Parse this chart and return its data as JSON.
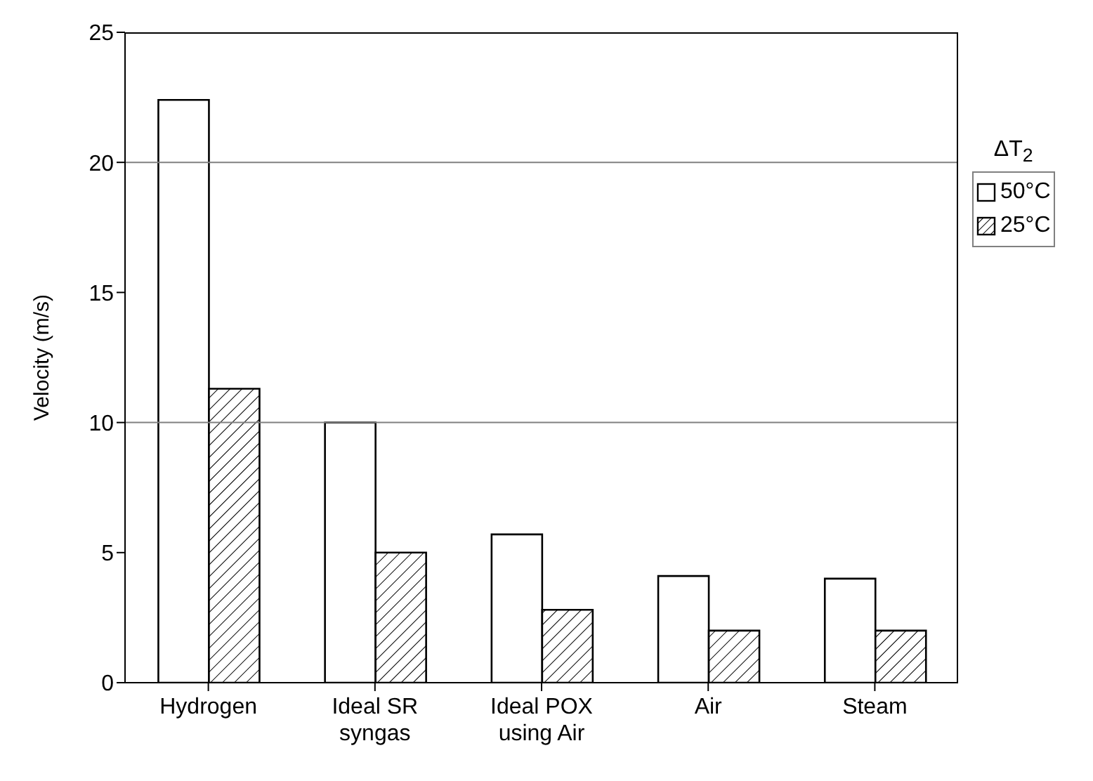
{
  "chart_data": {
    "type": "bar",
    "ylabel": "Velocity (m/s)",
    "legend_title": "ΔT$_{2}$",
    "categories": [
      "Hydrogen",
      "Ideal SR syngas",
      "Ideal POX using Air",
      "Air",
      "Steam"
    ],
    "series": [
      {
        "name": "50°C",
        "color": "#ffffff",
        "values": [
          22.4,
          10.0,
          5.7,
          4.1,
          4.0
        ]
      },
      {
        "name": "25°C",
        "color": "#000000",
        "values": [
          11.3,
          5.0,
          2.8,
          2.0,
          2.0
        ]
      }
    ],
    "ylim": [
      0,
      25
    ],
    "yticks": [
      0,
      5,
      10,
      15,
      20,
      25
    ],
    "grid": false,
    "legend": "right",
    "ref_lines": [
      {
        "axis": "y",
        "value": 10,
        "color": "#808080"
      },
      {
        "axis": "y",
        "value": 20,
        "color": "#808080"
      }
    ]
  }
}
